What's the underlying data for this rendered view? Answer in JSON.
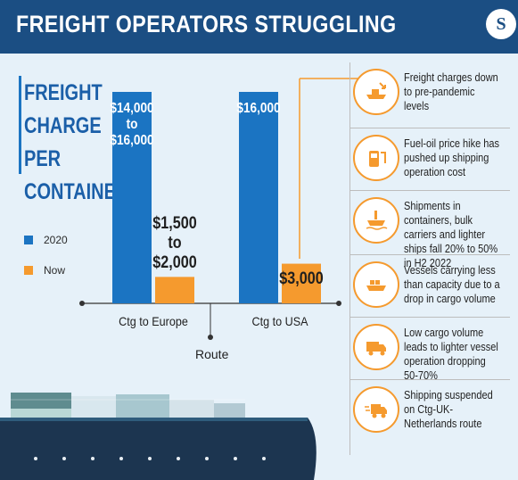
{
  "header": {
    "title": "FREIGHT OPERATORS STRUGGLING",
    "logo_letter": "S"
  },
  "sidebar": {
    "title_lines": [
      "FREIGHT",
      "CHARGE",
      "PER",
      "CONTAINER"
    ],
    "legend": [
      {
        "label": "2020",
        "color": "#1b74c2"
      },
      {
        "label": "Now",
        "color": "#f59a2e"
      }
    ]
  },
  "chart_data": {
    "type": "bar",
    "title": "FREIGHT CHARGE PER CONTAINER",
    "xlabel": "Route",
    "ylabel": "",
    "categories": [
      "Ctg to Europe",
      "Ctg to USA"
    ],
    "series": [
      {
        "name": "2020",
        "color": "#1b74c2",
        "values": [
          16000,
          16000
        ],
        "labels": [
          "$14,000\nto\n$16,000",
          "$16,000"
        ]
      },
      {
        "name": "Now",
        "color": "#f59a2e",
        "values": [
          2000,
          3000
        ],
        "labels": [
          "$1,500\nto\n$2,000",
          "$3,000"
        ]
      }
    ],
    "ylim": [
      0,
      16000
    ],
    "grid": false,
    "legend_position": "left"
  },
  "panel": {
    "items": [
      {
        "icon": "downtrend-ship-icon",
        "text": "Freight charges down to pre-pandemic levels"
      },
      {
        "icon": "fuel-drum-icon",
        "text": "Fuel-oil price hike has pushed up shipping operation cost"
      },
      {
        "icon": "cargo-ship-icon",
        "text": "Shipments in containers, bulk carriers and lighter ships fall 20% to 50% in H2 2022"
      },
      {
        "icon": "vessel-icon",
        "text": "Vessels carrying less than capacity due to a drop in cargo volume"
      },
      {
        "icon": "truck-icon",
        "text": "Low cargo volume leads to lighter vessel operation dropping 50-70%"
      },
      {
        "icon": "fast-truck-icon",
        "text": "Shipping suspended on Ctg-UK-Netherlands route"
      }
    ]
  },
  "colors": {
    "header": "#1b4e83",
    "bar_2020": "#1b74c2",
    "bar_now": "#f59a2e",
    "accent": "#f59a2e",
    "ship_hull": "#1c3550"
  }
}
